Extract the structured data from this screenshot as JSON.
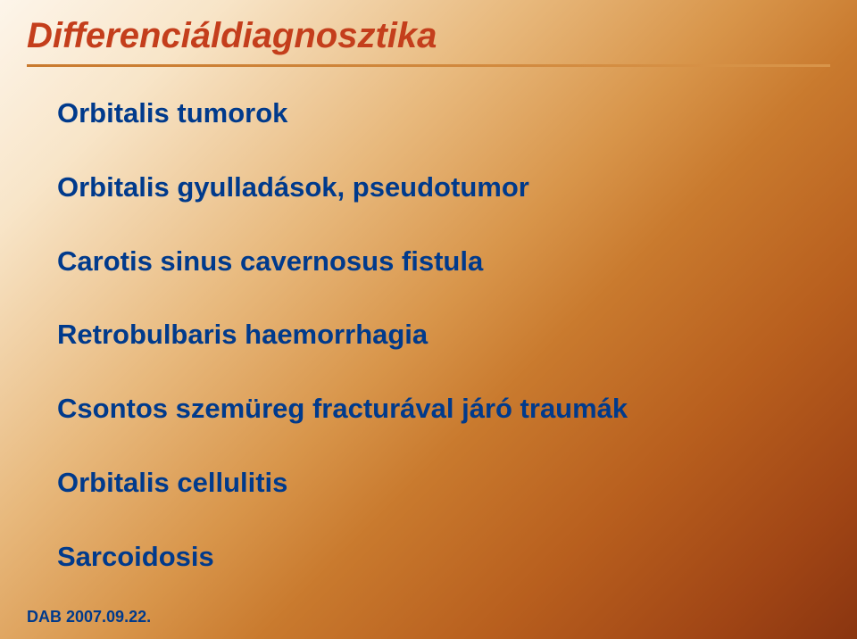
{
  "title": "Differenciáldiagnosztika",
  "items": [
    "Orbitalis tumorok",
    "Orbitalis gyulladások, pseudotumor",
    "Carotis sinus cavernosus fistula",
    "Retrobulbaris haemorrhagia",
    "Csontos szemüreg fracturával járó traumák",
    "Orbitalis cellulitis",
    "Sarcoidosis"
  ],
  "footer": "DAB 2007.09.22.",
  "colors": {
    "title_color": "#c43e1c",
    "text_color": "#003a8c",
    "bg_start": "#fdf5ea",
    "bg_end": "#8a3510"
  },
  "typography": {
    "title_fontsize": 40,
    "item_fontsize": 31,
    "footer_fontsize": 18,
    "font_family": "Arial"
  }
}
